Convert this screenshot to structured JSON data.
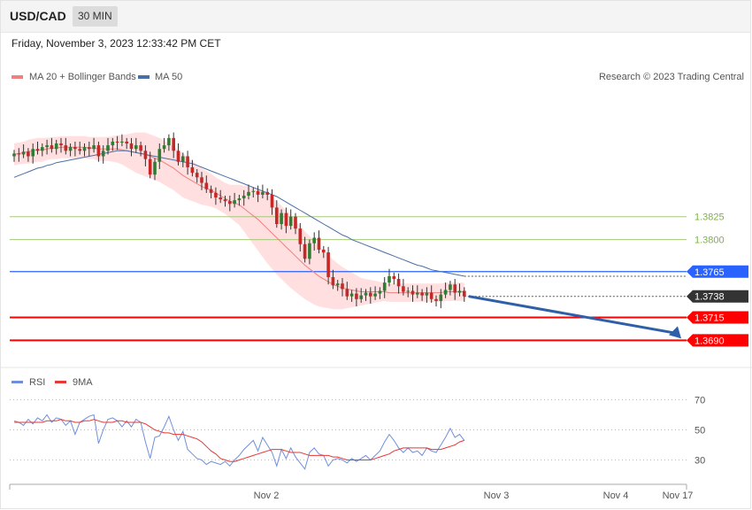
{
  "header": {
    "symbol": "USD/CAD",
    "timeframe": "30 MIN",
    "timestamp": "Friday, November 3, 2023 12:33:42 PM CET",
    "credit": "Research © 2023 Trading Central"
  },
  "colors": {
    "bollinger_fill": "#ffd9d9",
    "ma20": "#f08080",
    "ma50": "#4a6fa5",
    "candle_up": "#2e7d32",
    "candle_down": "#c62828",
    "level_green": "#a5c97a",
    "level_blue": "#2962ff",
    "level_red": "#ff0000",
    "last_price_bg": "#333333",
    "rsi": "#6f8fdc",
    "rsi_ma": "#e53935",
    "arrow": "#2e5fa8"
  },
  "chart_data": [
    {
      "type": "candlestick",
      "title": "USD/CAD 30 MIN",
      "legend": [
        "MA 20 + Bollinger Bands",
        "MA 50"
      ],
      "legend_position": "top-left",
      "x_ticks": [
        "Nov 2",
        "Nov 3",
        "Nov 4",
        "Nov 17"
      ],
      "levels": [
        {
          "value": 1.3825,
          "label": "1.3825",
          "kind": "resistance",
          "color": "#7cb342"
        },
        {
          "value": 1.38,
          "label": "1.3800",
          "kind": "resistance",
          "color": "#7cb342"
        },
        {
          "value": 1.3765,
          "label": "1.3765",
          "kind": "pivot",
          "color": "#2962ff"
        },
        {
          "value": 1.3738,
          "label": "1.3738",
          "kind": "last",
          "color": "#333333"
        },
        {
          "value": 1.3715,
          "label": "1.3715",
          "kind": "target",
          "color": "#ff0000"
        },
        {
          "value": 1.369,
          "label": "1.3690",
          "kind": "target",
          "color": "#ff0000"
        }
      ],
      "ylim": [
        1.367,
        1.3965
      ],
      "closes": [
        1.3894,
        1.3893,
        1.3896,
        1.3891,
        1.3899,
        1.3897,
        1.3901,
        1.3903,
        1.3899,
        1.3905,
        1.3903,
        1.3897,
        1.3901,
        1.3899,
        1.3897,
        1.3901,
        1.3899,
        1.3903,
        1.3891,
        1.3897,
        1.3903,
        1.3907,
        1.3906,
        1.3907,
        1.3905,
        1.3899,
        1.3903,
        1.3897,
        1.3888,
        1.3871,
        1.3885,
        1.3899,
        1.3903,
        1.3911,
        1.3897,
        1.3885,
        1.3891,
        1.3879,
        1.3873,
        1.3868,
        1.3862,
        1.3855,
        1.3851,
        1.3846,
        1.3844,
        1.3842,
        1.3839,
        1.3843,
        1.3845,
        1.3848,
        1.3852,
        1.3853,
        1.3849,
        1.3852,
        1.3849,
        1.3835,
        1.3817,
        1.3829,
        1.3815,
        1.3825,
        1.3812,
        1.3795,
        1.3779,
        1.3796,
        1.3802,
        1.3789,
        1.3786,
        1.3759,
        1.375,
        1.3752,
        1.3746,
        1.3738,
        1.3741,
        1.3735,
        1.3739,
        1.3742,
        1.3738,
        1.3741,
        1.3744,
        1.3753,
        1.376,
        1.3757,
        1.3749,
        1.3743,
        1.3744,
        1.374,
        1.3742,
        1.3739,
        1.3742,
        1.3735,
        1.3733,
        1.374,
        1.3745,
        1.3751,
        1.3742,
        1.3744,
        1.3738
      ],
      "opens": [
        1.3891,
        1.3894,
        1.3893,
        1.3896,
        1.3891,
        1.3899,
        1.3897,
        1.3901,
        1.3903,
        1.3899,
        1.3905,
        1.3903,
        1.3897,
        1.3901,
        1.3899,
        1.3897,
        1.3901,
        1.3899,
        1.3903,
        1.3891,
        1.3897,
        1.3903,
        1.3907,
        1.3906,
        1.3907,
        1.3905,
        1.3899,
        1.3903,
        1.3897,
        1.3888,
        1.3871,
        1.3885,
        1.3899,
        1.3903,
        1.3911,
        1.3897,
        1.3885,
        1.3891,
        1.3879,
        1.3873,
        1.3868,
        1.3862,
        1.3855,
        1.3851,
        1.3846,
        1.3844,
        1.3842,
        1.3839,
        1.3843,
        1.3845,
        1.3848,
        1.3852,
        1.3853,
        1.3849,
        1.3852,
        1.3849,
        1.3835,
        1.3817,
        1.3829,
        1.3815,
        1.3825,
        1.3812,
        1.3795,
        1.3779,
        1.3796,
        1.3802,
        1.3789,
        1.3786,
        1.3759,
        1.375,
        1.3752,
        1.3746,
        1.3738,
        1.3741,
        1.3735,
        1.3739,
        1.3742,
        1.3738,
        1.3741,
        1.3744,
        1.3753,
        1.376,
        1.3757,
        1.3749,
        1.3743,
        1.3744,
        1.374,
        1.3742,
        1.3739,
        1.3742,
        1.3735,
        1.3733,
        1.374,
        1.3745,
        1.3751,
        1.3742,
        1.3744
      ],
      "ma20": [
        1.3893,
        1.3894,
        1.3895,
        1.3896,
        1.3897,
        1.3898,
        1.3898,
        1.3899,
        1.39,
        1.39,
        1.3901,
        1.3901,
        1.3901,
        1.3901,
        1.3901,
        1.3901,
        1.39,
        1.39,
        1.3899,
        1.3899,
        1.3899,
        1.3899,
        1.3899,
        1.3898,
        1.3897,
        1.3896,
        1.3895,
        1.3894,
        1.3893,
        1.3891,
        1.3889,
        1.3887,
        1.3884,
        1.3881,
        1.3878,
        1.3874,
        1.387,
        1.3867,
        1.3864,
        1.3861,
        1.3858,
        1.3856,
        1.3854,
        1.3851,
        1.3848,
        1.3845,
        1.3842,
        1.384,
        1.3838,
        1.3834,
        1.383,
        1.3826,
        1.3822,
        1.3817,
        1.3812,
        1.3807,
        1.3802,
        1.3797,
        1.3792,
        1.3787,
        1.3782,
        1.3777,
        1.3772,
        1.3768,
        1.3764,
        1.376,
        1.3757,
        1.3754,
        1.3751,
        1.3749,
        1.3747,
        1.3746,
        1.3745,
        1.3744,
        1.3743,
        1.3743,
        1.3743,
        1.3743,
        1.3743,
        1.3743,
        1.3742,
        1.3742,
        1.3742,
        1.3742,
        1.3742,
        1.3742,
        1.3742,
        1.3742,
        1.3742,
        1.3742,
        1.3742,
        1.3742,
        1.3743,
        1.3743,
        1.3743,
        1.3743,
        1.3743
      ],
      "band_width": [
        0.0012,
        0.0012,
        0.0012,
        0.0013,
        0.0013,
        0.0013,
        0.0013,
        0.0012,
        0.0012,
        0.0012,
        0.0012,
        0.0012,
        0.0012,
        0.0012,
        0.0012,
        0.0012,
        0.0012,
        0.0012,
        0.0013,
        0.0013,
        0.0013,
        0.0014,
        0.0015,
        0.0016,
        0.0018,
        0.002,
        0.0022,
        0.0023,
        0.0024,
        0.0024,
        0.0024,
        0.0024,
        0.0024,
        0.0024,
        0.0024,
        0.0024,
        0.0024,
        0.0023,
        0.0022,
        0.0021,
        0.002,
        0.0019,
        0.0018,
        0.0017,
        0.0017,
        0.0017,
        0.0018,
        0.002,
        0.0022,
        0.0025,
        0.0028,
        0.0031,
        0.0034,
        0.0036,
        0.0038,
        0.0039,
        0.004,
        0.004,
        0.004,
        0.004,
        0.0039,
        0.0038,
        0.0037,
        0.0036,
        0.0035,
        0.0033,
        0.0031,
        0.0029,
        0.0027,
        0.0025,
        0.0023,
        0.0021,
        0.0019,
        0.0017,
        0.0015,
        0.0014,
        0.0013,
        0.0012,
        0.0011,
        0.001,
        0.001,
        0.001,
        0.001,
        0.001,
        0.001,
        0.001,
        0.001,
        0.001,
        0.001,
        0.001,
        0.001,
        0.001,
        0.001,
        0.001,
        0.001,
        0.001,
        0.001
      ],
      "ma50": [
        1.3868,
        1.387,
        1.3872,
        1.3874,
        1.3876,
        1.3878,
        1.3879,
        1.3881,
        1.3882,
        1.3884,
        1.3885,
        1.3886,
        1.3887,
        1.3888,
        1.3889,
        1.389,
        1.3891,
        1.3892,
        1.3893,
        1.3894,
        1.3895,
        1.3896,
        1.3897,
        1.3897,
        1.3897,
        1.3896,
        1.3895,
        1.3894,
        1.3893,
        1.3892,
        1.3891,
        1.389,
        1.3889,
        1.3888,
        1.3887,
        1.3886,
        1.3885,
        1.3884,
        1.3883,
        1.3881,
        1.3879,
        1.3877,
        1.3875,
        1.3873,
        1.3871,
        1.3869,
        1.3867,
        1.3865,
        1.3863,
        1.3861,
        1.3859,
        1.3857,
        1.3855,
        1.3853,
        1.3851,
        1.3849,
        1.3847,
        1.3844,
        1.3841,
        1.3838,
        1.3835,
        1.3832,
        1.3829,
        1.3826,
        1.3823,
        1.382,
        1.3817,
        1.3814,
        1.3811,
        1.3808,
        1.3805,
        1.3803,
        1.38,
        1.3798,
        1.3796,
        1.3794,
        1.3792,
        1.379,
        1.3788,
        1.3786,
        1.3784,
        1.3782,
        1.378,
        1.3778,
        1.3776,
        1.3774,
        1.3772,
        1.3771,
        1.3769,
        1.3767,
        1.3766,
        1.3765,
        1.3764,
        1.3763,
        1.3762,
        1.3761,
        1.376
      ],
      "projection": {
        "from": 1.3738,
        "to": 1.369
      }
    },
    {
      "type": "line",
      "legend": [
        "RSI",
        "9MA"
      ],
      "legend_position": "top-left",
      "y_ticks": [
        70,
        50,
        30
      ],
      "ylim": [
        15,
        75
      ],
      "series": [
        {
          "name": "RSI",
          "values": [
            56,
            55,
            53,
            57,
            54,
            58,
            56,
            60,
            55,
            58,
            57,
            53,
            56,
            47,
            55,
            57,
            59,
            60,
            41,
            50,
            57,
            58,
            56,
            52,
            56,
            52,
            57,
            55,
            42,
            31,
            45,
            46,
            52,
            59,
            50,
            43,
            49,
            37,
            34,
            31,
            30,
            27,
            29,
            28,
            27,
            29,
            26,
            30,
            33,
            37,
            40,
            43,
            36,
            45,
            40,
            35,
            26,
            37,
            31,
            38,
            32,
            28,
            24,
            35,
            38,
            34,
            33,
            26,
            30,
            31,
            30,
            28,
            31,
            29,
            31,
            33,
            30,
            33,
            36,
            42,
            47,
            43,
            38,
            35,
            38,
            35,
            36,
            33,
            38,
            36,
            35,
            40,
            45,
            51,
            45,
            47,
            43
          ]
        },
        {
          "name": "9MA",
          "values": [
            55,
            55,
            55,
            55,
            55,
            55,
            55,
            56,
            56,
            56,
            57,
            56,
            56,
            55,
            55,
            56,
            56,
            57,
            56,
            55,
            55,
            55,
            56,
            56,
            55,
            55,
            55,
            55,
            54,
            52,
            50,
            49,
            48,
            48,
            47,
            47,
            47,
            46,
            45,
            44,
            42,
            39,
            36,
            34,
            31,
            30,
            29,
            29,
            30,
            31,
            32,
            33,
            34,
            35,
            36,
            37,
            37,
            37,
            36,
            35,
            35,
            35,
            34,
            33,
            33,
            33,
            33,
            33,
            32,
            32,
            31,
            30,
            30,
            30,
            30,
            30,
            30,
            31,
            32,
            33,
            34,
            36,
            37,
            38,
            38,
            38,
            38,
            38,
            38,
            37,
            37,
            37,
            38,
            39,
            40,
            42,
            43
          ]
        }
      ]
    }
  ]
}
